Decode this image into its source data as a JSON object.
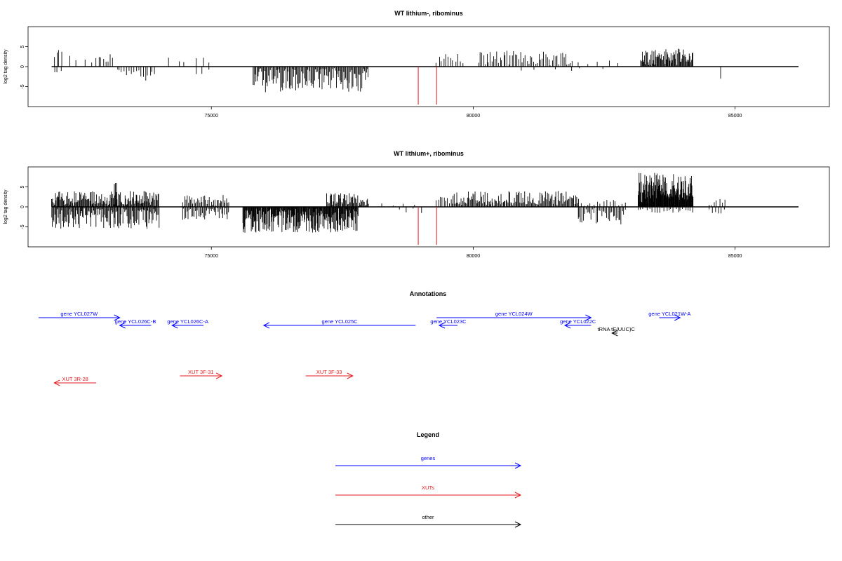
{
  "chart_data": [
    {
      "type": "bar",
      "title": "WT lithium-, ribominus",
      "ylabel": "log2 tag density",
      "xlim": [
        71500,
        86800
      ],
      "ylim": [
        -10,
        10
      ],
      "xticks": [
        75000,
        80000,
        85000
      ],
      "yticks": [
        -5,
        0,
        5
      ],
      "grid": false,
      "highlight_color": "#e41a1c",
      "bar_color": "#000000",
      "clusters": [
        {
          "from": 72000,
          "to": 72150,
          "step": 45,
          "direction": "+",
          "min": 1.5,
          "max": 4.5
        },
        {
          "from": 72000,
          "to": 72150,
          "step": 60,
          "direction": "-",
          "min": 1.0,
          "max": 3.0
        },
        {
          "from": 72300,
          "to": 72800,
          "step": 130,
          "direction": "+",
          "min": 0.5,
          "max": 3.5
        },
        {
          "from": 72800,
          "to": 73150,
          "step": 45,
          "direction": "+",
          "min": 1.0,
          "max": 4.0
        },
        {
          "from": 73200,
          "to": 73950,
          "step": 45,
          "direction": "-",
          "min": 0.5,
          "max": 3.5
        },
        {
          "from": 74200,
          "to": 75050,
          "step": 160,
          "direction": "+",
          "min": 0.5,
          "max": 2.5
        },
        {
          "from": 74700,
          "to": 75050,
          "step": 120,
          "direction": "-",
          "min": 0.5,
          "max": 2.5
        },
        {
          "from": 75800,
          "to": 78000,
          "step": 18,
          "direction": "-",
          "min": 0.5,
          "max": 6.5
        },
        {
          "from": 79300,
          "to": 79800,
          "step": 45,
          "direction": "+",
          "min": 0.5,
          "max": 3.8
        },
        {
          "from": 80100,
          "to": 81900,
          "step": 32,
          "direction": "+",
          "min": 0.5,
          "max": 4.0
        },
        {
          "from": 82000,
          "to": 82800,
          "step": 200,
          "direction": "+",
          "min": 0.5,
          "max": 2.0
        },
        {
          "from": 80900,
          "to": 82600,
          "step": 300,
          "direction": "-",
          "min": 0.5,
          "max": 1.5
        },
        {
          "from": 83200,
          "to": 84200,
          "step": 14,
          "direction": "+",
          "min": 1.0,
          "max": 4.5
        },
        {
          "from": 84750,
          "to": 84750,
          "step": 100,
          "direction": "-",
          "min": 3.0,
          "max": 3.0
        }
      ],
      "highlight_bars": [
        {
          "x": 78950,
          "value": -9.5
        },
        {
          "x": 79300,
          "value": -9.5
        }
      ]
    },
    {
      "type": "bar",
      "title": "WT lithium+, ribominus",
      "ylabel": "log2 tag density",
      "xlim": [
        71500,
        86800
      ],
      "ylim": [
        -10,
        10
      ],
      "xticks": [
        75000,
        80000,
        85000
      ],
      "yticks": [
        -5,
        0,
        5
      ],
      "grid": false,
      "highlight_color": "#e41a1c",
      "bar_color": "#000000",
      "clusters": [
        {
          "from": 71950,
          "to": 74000,
          "step": 14,
          "direction": "+",
          "min": 0.5,
          "max": 4.0
        },
        {
          "from": 71950,
          "to": 74000,
          "step": 16,
          "direction": "-",
          "min": 0.5,
          "max": 5.5
        },
        {
          "from": 73150,
          "to": 73200,
          "step": 20,
          "direction": "+",
          "min": 5.0,
          "max": 6.0
        },
        {
          "from": 74450,
          "to": 75350,
          "step": 22,
          "direction": "+",
          "min": 0.5,
          "max": 3.0
        },
        {
          "from": 74450,
          "to": 75350,
          "step": 22,
          "direction": "-",
          "min": 0.5,
          "max": 3.5
        },
        {
          "from": 75600,
          "to": 77800,
          "step": 10,
          "direction": "-",
          "min": 0.5,
          "max": 6.5
        },
        {
          "from": 77200,
          "to": 78000,
          "step": 16,
          "direction": "+",
          "min": 0.5,
          "max": 3.5
        },
        {
          "from": 78300,
          "to": 79000,
          "step": 180,
          "direction": "+",
          "min": 0.5,
          "max": 1.0
        },
        {
          "from": 78600,
          "to": 79100,
          "step": 140,
          "direction": "-",
          "min": 0.5,
          "max": 2.0
        },
        {
          "from": 79300,
          "to": 79600,
          "step": 35,
          "direction": "+",
          "min": 0.5,
          "max": 2.5
        },
        {
          "from": 79600,
          "to": 82000,
          "step": 18,
          "direction": "+",
          "min": 0.5,
          "max": 4.0
        },
        {
          "from": 82000,
          "to": 82900,
          "step": 25,
          "direction": "-",
          "min": 0.5,
          "max": 4.5
        },
        {
          "from": 82000,
          "to": 82900,
          "step": 60,
          "direction": "+",
          "min": 0.5,
          "max": 2.0
        },
        {
          "from": 83150,
          "to": 84200,
          "step": 8,
          "direction": "+",
          "min": 2.0,
          "max": 8.5
        },
        {
          "from": 83150,
          "to": 84200,
          "step": 45,
          "direction": "-",
          "min": 0.5,
          "max": 1.5
        },
        {
          "from": 84500,
          "to": 84800,
          "step": 50,
          "direction": "+",
          "min": 1.0,
          "max": 2.0
        },
        {
          "from": 84500,
          "to": 84800,
          "step": 60,
          "direction": "-",
          "min": 1.0,
          "max": 2.0
        }
      ],
      "highlight_bars": [
        {
          "x": 78950,
          "value": -9.5
        },
        {
          "x": 79300,
          "value": -9.5
        }
      ]
    }
  ],
  "annotations": {
    "title": "Annotations",
    "colors": {
      "gene": "#0000ff",
      "xut": "#e41a1c",
      "other": "#000000"
    },
    "features": [
      {
        "label": "gene YCL027W",
        "kind": "gene",
        "start": 71700,
        "end": 73250,
        "strand": "+",
        "row": 0
      },
      {
        "label": "gene YCL026C-B",
        "kind": "gene",
        "start": 73250,
        "end": 73850,
        "strand": "-",
        "row": 1
      },
      {
        "label": "gene YCL026C-A",
        "kind": "gene",
        "start": 74250,
        "end": 74850,
        "strand": "-",
        "row": 1
      },
      {
        "label": "gene YCL025C",
        "kind": "gene",
        "start": 76000,
        "end": 78900,
        "strand": "-",
        "row": 1
      },
      {
        "label": "gene YCL023C",
        "kind": "gene",
        "start": 79350,
        "end": 79700,
        "strand": "-",
        "row": 1
      },
      {
        "label": "gene YCL024W",
        "kind": "gene",
        "start": 79300,
        "end": 82250,
        "strand": "+",
        "row": 0
      },
      {
        "label": "gene YCL022C",
        "kind": "gene",
        "start": 81750,
        "end": 82250,
        "strand": "-",
        "row": 1
      },
      {
        "label": "gene YCL021W-A",
        "kind": "gene",
        "start": 83550,
        "end": 83950,
        "strand": "+",
        "row": 0
      },
      {
        "label": "tRNA tE(UUC)C",
        "kind": "other",
        "start": 82650,
        "end": 82750,
        "strand": "-",
        "row": 2
      },
      {
        "label": "XUT 3R-28",
        "kind": "xut",
        "start": 72000,
        "end": 72800,
        "strand": "-",
        "row": 3
      },
      {
        "label": "XUT 3F-31",
        "kind": "xut",
        "start": 74400,
        "end": 75200,
        "strand": "+",
        "row": 2.5
      },
      {
        "label": "XUT 3F-33",
        "kind": "xut",
        "start": 76800,
        "end": 77700,
        "strand": "+",
        "row": 2.5
      }
    ]
  },
  "legend": {
    "title": "Legend",
    "items": [
      {
        "label": "genes",
        "color": "#0000ff"
      },
      {
        "label": "XUTs",
        "color": "#e41a1c"
      },
      {
        "label": "other",
        "color": "#000000"
      }
    ]
  }
}
